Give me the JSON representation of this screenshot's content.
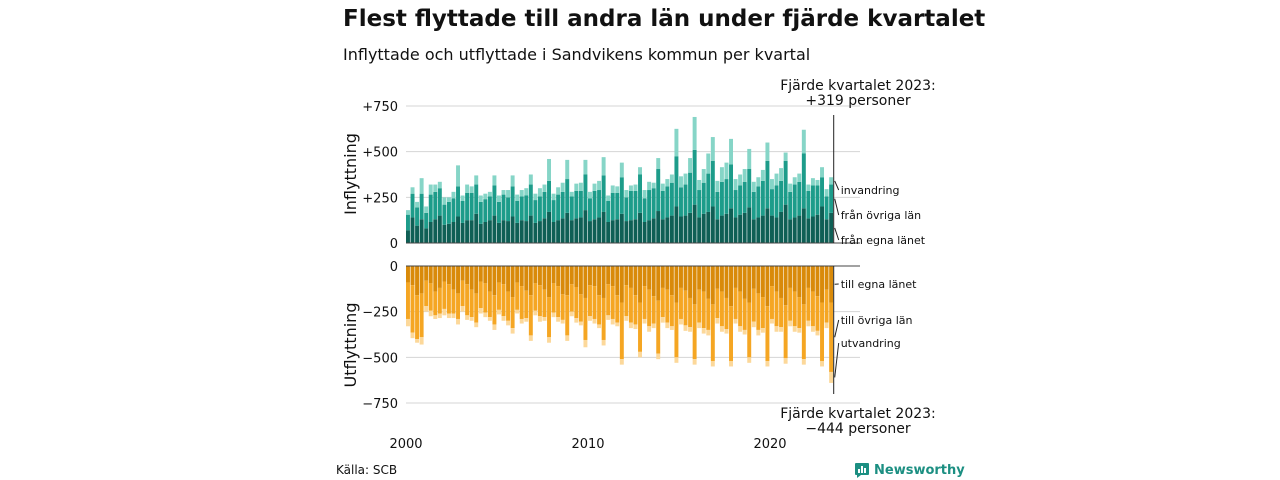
{
  "title": "Flest flyttade till andra län under fjärde kvartalet",
  "subtitle": "Inflyttade och utflyttade i Sandvikens kommun per kvartal",
  "source": "Källa: SCB",
  "brand": "Newsworthy",
  "annotations": {
    "top_line1": "Fjärde kvartalet 2023:",
    "top_line2": "+319 personer",
    "bottom_line1": "Fjärde kvartalet 2023:",
    "bottom_line2": "−444 personer"
  },
  "colors": {
    "in_own": "#0f5f55",
    "in_other": "#1d9c8a",
    "in_immigration": "#86d5c7",
    "out_own": "#d98a0a",
    "out_other": "#f5a623",
    "out_emigration": "#fcd89a",
    "brand": "#1c8f82"
  },
  "chart_data": [
    {
      "type": "bar",
      "stacked": true,
      "ylabel": "Inflyttning",
      "ylim": [
        0,
        750
      ],
      "yticks": [
        0,
        250,
        500,
        750
      ],
      "ytick_labels": [
        "0",
        "+250",
        "+500",
        "+750"
      ],
      "x_start": 2000.0,
      "x_step": 0.25,
      "xticks": [
        2000,
        2010,
        2020
      ],
      "xtick_labels": [
        "2000",
        "2010",
        "2020"
      ],
      "grid": true,
      "series": [
        {
          "name": "från egna länet",
          "values": [
            70,
            140,
            95,
            130,
            80,
            115,
            130,
            150,
            100,
            105,
            115,
            145,
            110,
            125,
            125,
            160,
            105,
            115,
            125,
            150,
            110,
            125,
            120,
            145,
            110,
            125,
            120,
            150,
            110,
            120,
            135,
            170,
            115,
            125,
            135,
            165,
            125,
            135,
            140,
            180,
            120,
            130,
            140,
            170,
            115,
            125,
            130,
            160,
            120,
            125,
            130,
            165,
            115,
            125,
            135,
            175,
            130,
            140,
            150,
            200,
            145,
            150,
            165,
            210,
            140,
            160,
            170,
            200,
            130,
            150,
            160,
            190,
            140,
            155,
            165,
            195,
            130,
            140,
            150,
            190,
            150,
            140,
            170,
            210,
            130,
            140,
            150,
            190,
            135,
            145,
            155,
            200,
            130,
            165
          ]
        },
        {
          "name": "från övriga län",
          "values": [
            85,
            130,
            100,
            140,
            85,
            150,
            150,
            150,
            110,
            120,
            130,
            165,
            120,
            150,
            150,
            160,
            120,
            125,
            130,
            165,
            115,
            140,
            130,
            165,
            120,
            130,
            140,
            170,
            125,
            135,
            145,
            170,
            120,
            140,
            145,
            185,
            130,
            150,
            145,
            195,
            125,
            155,
            150,
            200,
            115,
            150,
            145,
            200,
            130,
            160,
            155,
            210,
            130,
            165,
            165,
            230,
            155,
            170,
            180,
            275,
            160,
            170,
            220,
            300,
            150,
            170,
            210,
            250,
            150,
            185,
            190,
            240,
            150,
            160,
            170,
            210,
            150,
            170,
            190,
            260,
            145,
            175,
            170,
            240,
            150,
            180,
            185,
            300,
            150,
            170,
            160,
            160,
            125,
            155
          ]
        },
        {
          "name": "invandring",
          "values": [
            25,
            35,
            30,
            85,
            35,
            55,
            40,
            35,
            40,
            25,
            35,
            115,
            30,
            45,
            35,
            50,
            35,
            30,
            25,
            55,
            35,
            25,
            40,
            60,
            35,
            35,
            40,
            55,
            35,
            45,
            40,
            120,
            35,
            40,
            50,
            105,
            25,
            40,
            45,
            80,
            35,
            40,
            50,
            100,
            30,
            40,
            35,
            80,
            40,
            30,
            35,
            40,
            45,
            45,
            30,
            60,
            40,
            40,
            45,
            150,
            60,
            60,
            80,
            180,
            55,
            75,
            110,
            130,
            60,
            80,
            90,
            140,
            60,
            60,
            70,
            110,
            55,
            50,
            60,
            100,
            55,
            65,
            70,
            45,
            45,
            40,
            45,
            130,
            35,
            40,
            30,
            55,
            40,
            40
          ]
        }
      ]
    },
    {
      "type": "bar",
      "stacked": true,
      "ylabel": "Utflyttning",
      "ylim": [
        -750,
        0
      ],
      "yticks": [
        0,
        -250,
        -500,
        -750
      ],
      "ytick_labels": [
        "0",
        "−250",
        "−500",
        "−750"
      ],
      "x_start": 2000.0,
      "x_step": 0.25,
      "grid": true,
      "series": [
        {
          "name": "till egna länet",
          "values": [
            -90,
            -105,
            -160,
            -150,
            -80,
            -95,
            -140,
            -120,
            -85,
            -100,
            -130,
            -150,
            -80,
            -100,
            -130,
            -150,
            -85,
            -95,
            -140,
            -160,
            -90,
            -100,
            -140,
            -170,
            -90,
            -110,
            -135,
            -160,
            -95,
            -105,
            -130,
            -170,
            -95,
            -110,
            -155,
            -160,
            -100,
            -115,
            -155,
            -175,
            -105,
            -110,
            -160,
            -175,
            -100,
            -110,
            -160,
            -200,
            -105,
            -120,
            -160,
            -200,
            -110,
            -130,
            -165,
            -190,
            -120,
            -130,
            -160,
            -200,
            -120,
            -135,
            -175,
            -210,
            -130,
            -140,
            -180,
            -210,
            -125,
            -140,
            -175,
            -220,
            -120,
            -140,
            -180,
            -200,
            -125,
            -150,
            -170,
            -220,
            -110,
            -140,
            -175,
            -215,
            -120,
            -140,
            -170,
            -210,
            -120,
            -140,
            -165,
            -200,
            -130,
            -200
          ]
        },
        {
          "name": "till övriga län",
          "values": [
            -200,
            -260,
            -240,
            -240,
            -140,
            -150,
            -130,
            -140,
            -150,
            -160,
            -130,
            -140,
            -140,
            -170,
            -150,
            -160,
            -145,
            -160,
            -140,
            -160,
            -150,
            -175,
            -160,
            -170,
            -150,
            -180,
            -150,
            -220,
            -150,
            -170,
            -150,
            -220,
            -160,
            -170,
            -140,
            -220,
            -150,
            -170,
            -150,
            -230,
            -170,
            -180,
            -160,
            -230,
            -170,
            -180,
            -150,
            -310,
            -170,
            -190,
            -160,
            -270,
            -180,
            -200,
            -150,
            -290,
            -160,
            -180,
            -170,
            -300,
            -170,
            -190,
            -160,
            -300,
            -180,
            -200,
            -170,
            -310,
            -160,
            -190,
            -170,
            -300,
            -170,
            -190,
            -170,
            -300,
            -180,
            -200,
            -170,
            -300,
            -180,
            -190,
            -160,
            -290,
            -180,
            -190,
            -170,
            -300,
            -180,
            -190,
            -190,
            -320,
            -180,
            -380
          ]
        },
        {
          "name": "utvandring",
          "values": [
            -40,
            -30,
            -20,
            -40,
            -30,
            -30,
            -20,
            -25,
            -35,
            -25,
            -25,
            -30,
            -30,
            -25,
            -20,
            -25,
            -30,
            -25,
            -20,
            -30,
            -25,
            -25,
            -25,
            -30,
            -20,
            -25,
            -20,
            -30,
            -25,
            -30,
            -20,
            -30,
            -25,
            -25,
            -20,
            -30,
            -25,
            -25,
            -20,
            -40,
            -25,
            -25,
            -20,
            -30,
            -25,
            -30,
            -20,
            -30,
            -25,
            -30,
            -25,
            -30,
            -25,
            -30,
            -25,
            -30,
            -30,
            -30,
            -20,
            -30,
            -30,
            -30,
            -25,
            -30,
            -30,
            -30,
            -30,
            -30,
            -30,
            -30,
            -25,
            -30,
            -25,
            -30,
            -25,
            -30,
            -30,
            -30,
            -25,
            -30,
            -25,
            -30,
            -25,
            -30,
            -30,
            -30,
            -25,
            -30,
            -30,
            -30,
            -25,
            -30,
            -30,
            -60
          ]
        }
      ]
    }
  ]
}
